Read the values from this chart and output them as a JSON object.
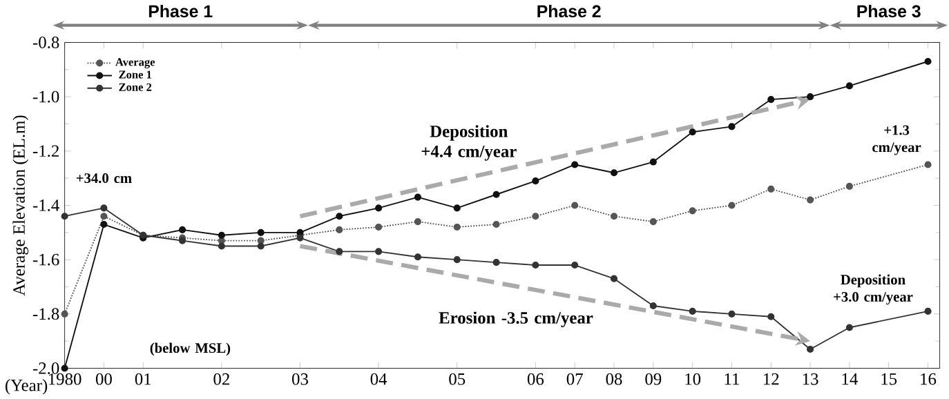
{
  "chart_data": {
    "type": "line",
    "ylabel": "Average Elevation (EL.m)",
    "xlabel": "(Year)",
    "categories": [
      "1980",
      "00",
      "01",
      null,
      "02",
      null,
      "03",
      null,
      "04",
      null,
      "05",
      null,
      "06",
      "07",
      "08",
      "09",
      "10",
      "11",
      "12",
      "13",
      "14",
      "15",
      "16"
    ],
    "series": [
      {
        "name": "Average",
        "color": "#555555",
        "line_style": "dotted",
        "marker": "circle",
        "values": [
          -1.8,
          -1.44,
          -1.51,
          -1.52,
          -1.53,
          -1.53,
          -1.51,
          -1.49,
          -1.48,
          -1.46,
          -1.48,
          -1.47,
          -1.44,
          -1.4,
          -1.44,
          -1.46,
          -1.42,
          -1.4,
          -1.34,
          -1.38,
          -1.33,
          null,
          -1.25
        ]
      },
      {
        "name": "Zone 1",
        "color": "#111111",
        "line_style": "solid",
        "marker": "circle",
        "values": [
          -2.0,
          -1.47,
          -1.52,
          -1.49,
          -1.51,
          -1.5,
          -1.5,
          -1.44,
          -1.41,
          -1.37,
          -1.41,
          -1.36,
          -1.31,
          -1.25,
          -1.28,
          -1.24,
          -1.13,
          -1.11,
          -1.01,
          -1.0,
          -0.96,
          null,
          -0.87
        ]
      },
      {
        "name": "Zone 2",
        "color": "#333333",
        "line_style": "solid",
        "marker": "circle",
        "values": [
          -1.44,
          -1.41,
          -1.51,
          -1.53,
          -1.55,
          -1.55,
          -1.52,
          -1.57,
          -1.57,
          -1.59,
          -1.6,
          -1.61,
          -1.62,
          -1.62,
          -1.67,
          -1.77,
          -1.79,
          -1.8,
          -1.81,
          -1.93,
          -1.85,
          null,
          -1.79
        ]
      },
      {
        "type": "line",
        "color": "#aaaaaa",
        "line_style": "dashed",
        "values": [
          null,
          null,
          null,
          null,
          null,
          null,
          -1.44,
          null,
          null,
          null,
          null,
          null,
          null,
          null,
          null,
          null,
          null,
          null,
          null,
          -1.01,
          null,
          null,
          null
        ]
      },
      {
        "type": "line",
        "color": "#aaaaaa",
        "line_style": "dashed",
        "values": [
          null,
          null,
          null,
          null,
          null,
          null,
          -1.55,
          null,
          null,
          null,
          null,
          null,
          null,
          null,
          null,
          null,
          null,
          null,
          null,
          -1.9,
          null,
          null,
          null
        ]
      }
    ],
    "ylim": [
      -2.0,
      -0.8
    ],
    "yticks": [
      {
        "value": -2.0,
        "label": "-2.0"
      },
      {
        "value": -1.8,
        "label": "-1.8"
      },
      {
        "value": -1.6,
        "label": "-1.6"
      },
      {
        "value": -1.4,
        "label": "-1.4"
      },
      {
        "value": -1.2,
        "label": "-1.2"
      },
      {
        "value": -1.0,
        "label": "-1.0"
      },
      {
        "value": -0.8,
        "label": "-0.8"
      }
    ],
    "grid": false,
    "legend": "top left",
    "annotations": [
      "Phase 1",
      "Phase 2",
      "Phase 3",
      "Deposition +4.4 cm/year",
      "Erosion -3.5 cm/year",
      "+1.3 cm/year",
      "Deposition +3.0 cm/year",
      "+34.0 cm",
      "(below MSL)"
    ]
  }
}
